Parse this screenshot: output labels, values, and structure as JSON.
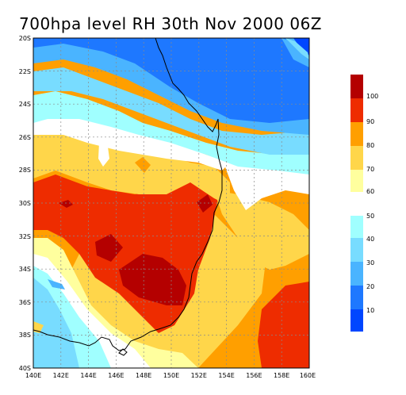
{
  "title": "700hpa level RH 30th Nov 2000 06Z",
  "lat_labels": [
    "20S",
    "22S",
    "24S",
    "26S",
    "28S",
    "30S",
    "32S",
    "34S",
    "36S",
    "38S",
    "40S"
  ],
  "lon_labels": [
    "140E",
    "142E",
    "144E",
    "146E",
    "148E",
    "150E",
    "152E",
    "154E",
    "156E",
    "158E",
    "160E"
  ],
  "colorbar": {
    "upper_labels": [
      "100",
      "90",
      "80",
      "70",
      "60"
    ],
    "lower_labels": [
      "50",
      "40",
      "30",
      "20",
      "10"
    ],
    "colors": {
      "100": "#b40000",
      "90": "#ee2c00",
      "80": "#ff9f00",
      "70": "#ffd64a",
      "60": "#ffff9e",
      "50": "#a0ffff",
      "40": "#78dcff",
      "30": "#4ab4ff",
      "20": "#1e78ff",
      "10": "#0046ff"
    }
  }
}
